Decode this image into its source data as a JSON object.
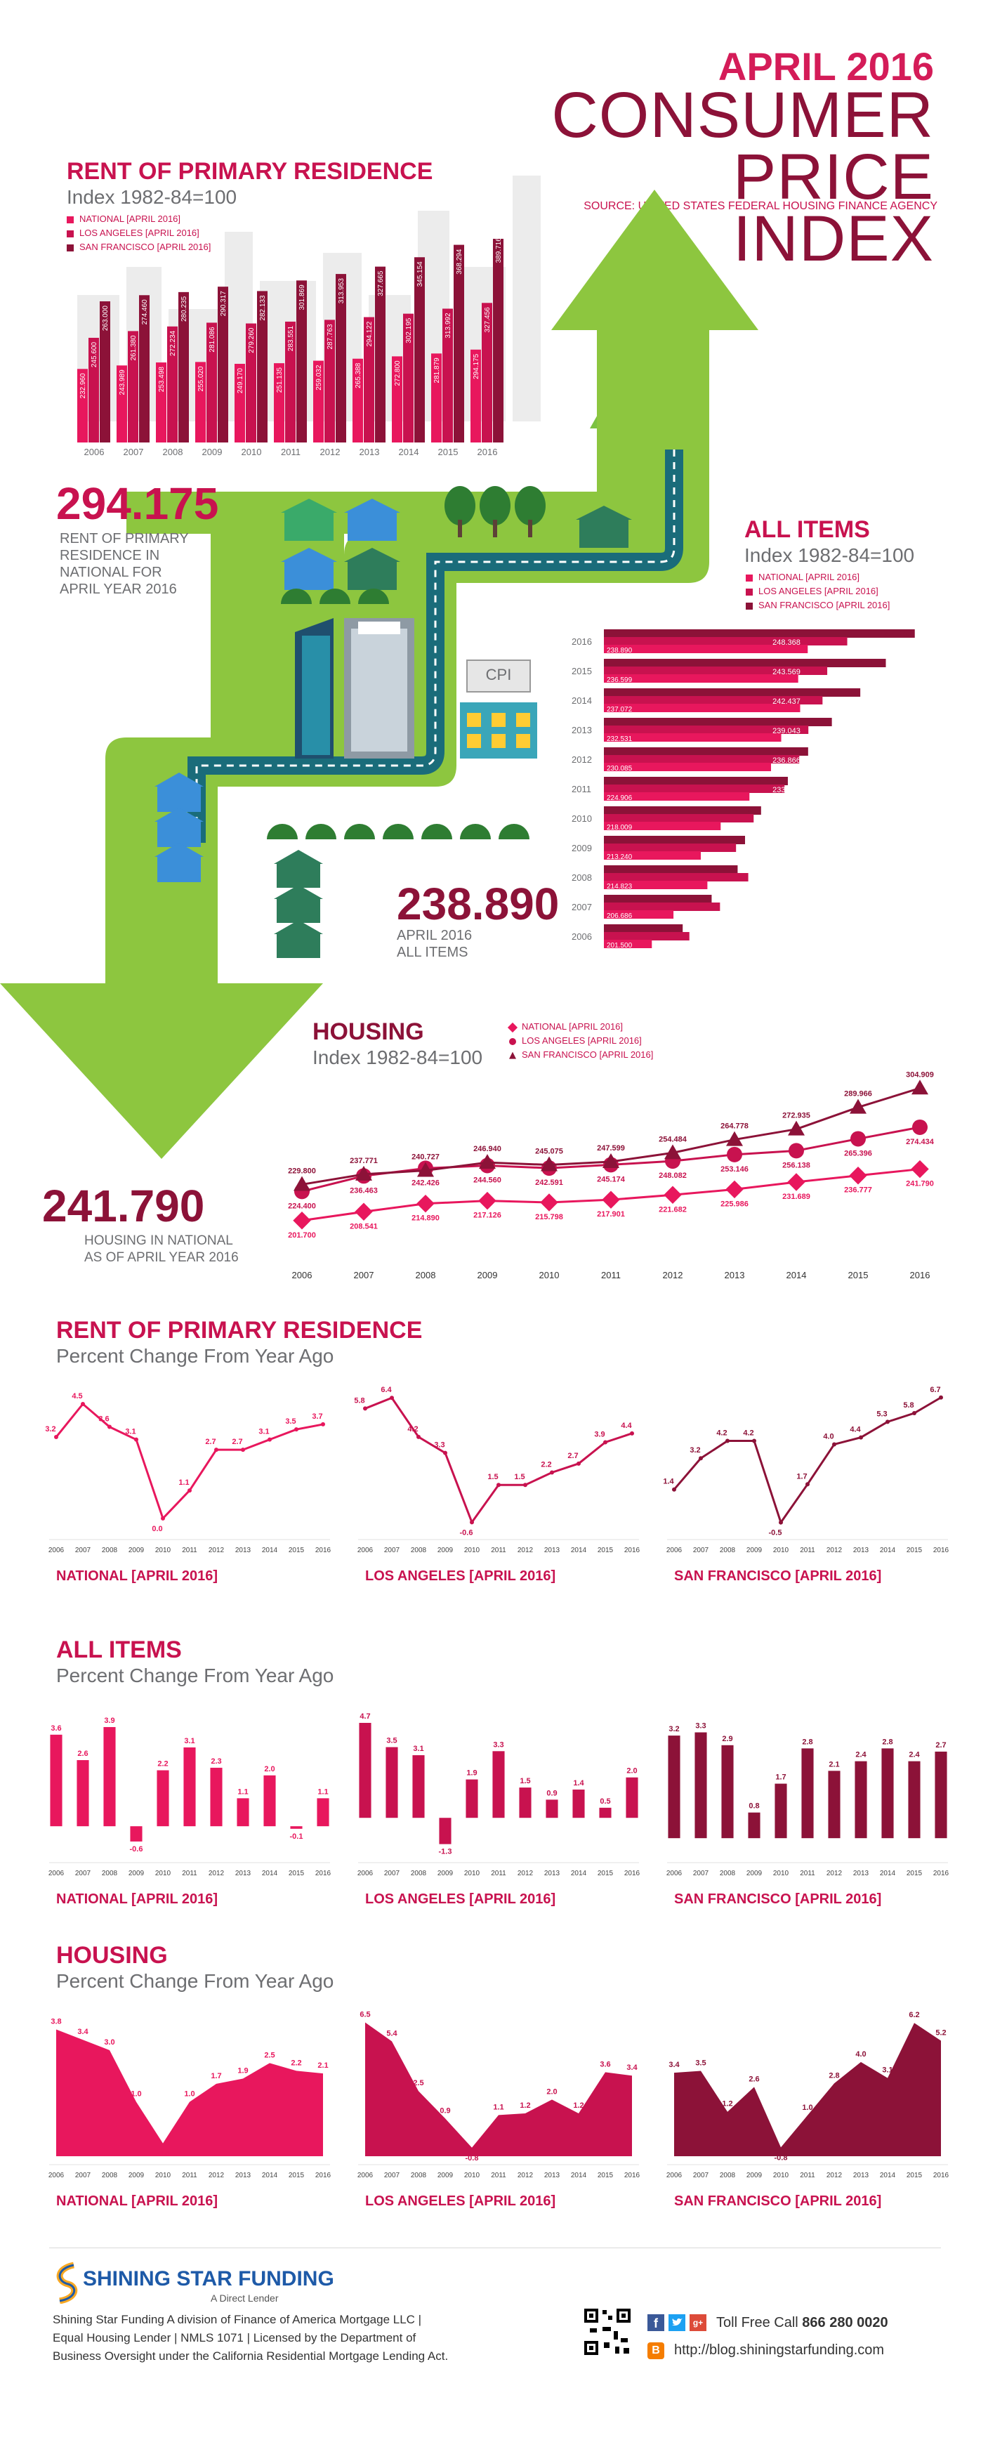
{
  "header": {
    "title_line1": "APRIL 2016",
    "title_line2a": "CONSUMER",
    "title_line2b": "PRICE INDEX",
    "source": "SOURCE: UNITED STATES FEDERAL HOUSING FINANCE AGENCY"
  },
  "colors": {
    "national": "#e8175d",
    "los_angeles": "#c8124f",
    "san_francisco": "#8c1238",
    "green": "#8dc63f",
    "dark_green": "#3b7a2a"
  },
  "icons": [
    "house-icon",
    "tree-icon",
    "building-icon",
    "cpi-store-icon",
    "arrow-icon",
    "skyline-icon",
    "qr-code-icon",
    "facebook-icon",
    "twitter-icon",
    "google-plus-icon",
    "blogger-icon",
    "shining-star-logo-icon"
  ],
  "legend": {
    "national": "NATIONAL [APRIL 2016]",
    "los_angeles": "LOS ANGELES [APRIL 2016]",
    "san_francisco": "SAN FRANCISCO [APRIL 2016]"
  },
  "rent_section": {
    "title": "RENT OF PRIMARY RESIDENCE",
    "subtitle": "Index 1982-84=100"
  },
  "rent_callout": {
    "value": "294.175",
    "caption_lines": [
      "RENT OF PRIMARY",
      "RESIDENCE IN",
      "NATIONAL FOR",
      "APRIL YEAR 2016"
    ]
  },
  "allitems_section": {
    "title": "ALL ITEMS",
    "subtitle": "Index 1982-84=100"
  },
  "allitems_callout": {
    "value": "238.890",
    "caption_lines": [
      "APRIL 2016",
      "ALL ITEMS"
    ]
  },
  "housing_section": {
    "title": "HOUSING",
    "subtitle": "Index 1982-84=100"
  },
  "housing_callout": {
    "value": "241.790",
    "caption_lines": [
      "HOUSING IN NATIONAL",
      "AS OF APRIL YEAR 2016"
    ]
  },
  "cpi_sign": "CPI",
  "chart_data": [
    {
      "id": "rent-index",
      "type": "bar",
      "title": "RENT OF PRIMARY RESIDENCE",
      "subtitle": "Index 1982-84=100",
      "categories": [
        "2006",
        "2007",
        "2008",
        "2009",
        "2010",
        "2011",
        "2012",
        "2013",
        "2014",
        "2015",
        "2016"
      ],
      "series": [
        {
          "name": "NATIONAL [APRIL 2016]",
          "values": [
            232.96,
            243.989,
            253.498,
            255.02,
            249.17,
            251.135,
            259.032,
            265.388,
            272.8,
            281.879,
            294.175
          ]
        },
        {
          "name": "LOS ANGELES [APRIL 2016]",
          "values": [
            245.6,
            261.38,
            272.234,
            281.086,
            279.26,
            283.551,
            287.763,
            294.122,
            302.195,
            313.992,
            327.456
          ]
        },
        {
          "name": "SAN FRANCISCO [APRIL 2016]",
          "values": [
            263.0,
            274.46,
            280.235,
            290.317,
            282.133,
            301.869,
            313.953,
            327.665,
            345.154,
            368.294,
            389.716
          ]
        }
      ],
      "ylim": [
        0,
        400
      ]
    },
    {
      "id": "allitems-index",
      "type": "bar",
      "orientation": "horizontal",
      "title": "ALL ITEMS",
      "subtitle": "Index 1982-84=100",
      "categories": [
        "2016",
        "2015",
        "2014",
        "2013",
        "2012",
        "2011",
        "2010",
        "2009",
        "2008",
        "2007",
        "2006"
      ],
      "series": [
        {
          "name": "NATIONAL [APRIL 2016]",
          "values": [
            238.89,
            236.599,
            237.072,
            232.531,
            230.085,
            224.906,
            218.009,
            213.24,
            214.823,
            206.686,
            201.5
          ]
        },
        {
          "name": "LOS ANGELES [APRIL 2016]",
          "values": [
            248.368,
            243.569,
            242.437,
            239.043,
            236.866,
            233.319,
            225.916,
            221.693,
            224.625,
            217.845,
            210.5
          ]
        },
        {
          "name": "SAN FRANCISCO [APRIL 2016]",
          "values": [
            264.565,
            257.622,
            251.495,
            244.675,
            238.985,
            234.121,
            227.697,
            223.854,
            222.074,
            215.842,
            208.9
          ]
        }
      ],
      "xlim": [
        190,
        270
      ]
    },
    {
      "id": "housing-index",
      "type": "line",
      "title": "HOUSING",
      "subtitle": "Index 1982-84=100",
      "x": [
        "2006",
        "2007",
        "2008",
        "2009",
        "2010",
        "2011",
        "2012",
        "2013",
        "2014",
        "2015",
        "2016"
      ],
      "series": [
        {
          "name": "NATIONAL [APRIL 2016]",
          "values": [
            201.7,
            208.541,
            214.89,
            217.126,
            215.798,
            217.901,
            221.682,
            225.986,
            231.689,
            236.777,
            241.79
          ]
        },
        {
          "name": "LOS ANGELES [APRIL 2016]",
          "values": [
            224.4,
            236.463,
            242.426,
            244.56,
            242.591,
            245.174,
            248.082,
            253.146,
            256.138,
            265.396,
            274.434
          ]
        },
        {
          "name": "SAN FRANCISCO [APRIL 2016]",
          "values": [
            229.8,
            237.771,
            240.727,
            246.94,
            245.075,
            247.599,
            254.484,
            264.778,
            272.935,
            289.966,
            304.909
          ]
        }
      ],
      "ylim": [
        195,
        310
      ]
    },
    {
      "id": "rent-pct",
      "type": "line",
      "title": "RENT OF PRIMARY RESIDENCE",
      "subtitle": "Percent Change From Year Ago",
      "x": [
        "2006",
        "2007",
        "2008",
        "2009",
        "2010",
        "2011",
        "2012",
        "2013",
        "2014",
        "2015",
        "2016"
      ],
      "panels": [
        {
          "label": "NATIONAL [APRIL 2016]",
          "values": [
            3.2,
            4.5,
            3.6,
            3.1,
            0.0,
            1.1,
            2.7,
            2.7,
            3.1,
            3.5,
            3.7
          ]
        },
        {
          "label": "LOS ANGELES [APRIL 2016]",
          "values": [
            5.8,
            6.4,
            4.2,
            3.3,
            -0.6,
            1.5,
            1.5,
            2.2,
            2.7,
            3.9,
            4.4
          ]
        },
        {
          "label": "SAN FRANCISCO [APRIL 2016]",
          "values": [
            1.4,
            3.2,
            4.2,
            4.2,
            -0.5,
            1.7,
            4.0,
            4.4,
            5.3,
            5.8,
            6.7
          ]
        }
      ]
    },
    {
      "id": "allitems-pct",
      "type": "bar",
      "title": "ALL ITEMS",
      "subtitle": "Percent Change From Year Ago",
      "categories": [
        "2006",
        "2007",
        "2008",
        "2009",
        "2010",
        "2011",
        "2012",
        "2013",
        "2014",
        "2015",
        "2016"
      ],
      "panels": [
        {
          "label": "NATIONAL [APRIL 2016]",
          "values": [
            3.6,
            2.6,
            3.9,
            -0.6,
            2.2,
            3.1,
            2.3,
            1.1,
            2.0,
            -0.1,
            1.1
          ]
        },
        {
          "label": "LOS ANGELES [APRIL 2016]",
          "values": [
            4.7,
            3.5,
            3.1,
            -1.3,
            1.9,
            3.3,
            1.5,
            0.9,
            1.4,
            0.5,
            2.0
          ]
        },
        {
          "label": "SAN FRANCISCO [APRIL 2016]",
          "values": [
            3.2,
            3.3,
            2.9,
            0.8,
            1.7,
            2.8,
            2.1,
            2.4,
            2.8,
            2.4,
            2.7
          ]
        }
      ]
    },
    {
      "id": "housing-pct",
      "type": "area",
      "title": "HOUSING",
      "subtitle": "Percent Change From Year Ago",
      "x": [
        "2006",
        "2007",
        "2008",
        "2009",
        "2010",
        "2011",
        "2012",
        "2013",
        "2014",
        "2015",
        "2016"
      ],
      "panels": [
        {
          "label": "NATIONAL [APRIL 2016]",
          "values": [
            3.8,
            3.4,
            3.0,
            1.0,
            -0.6,
            1.0,
            1.7,
            1.9,
            2.5,
            2.2,
            2.1
          ]
        },
        {
          "label": "LOS ANGELES [APRIL 2016]",
          "values": [
            6.5,
            5.4,
            2.5,
            0.9,
            -0.8,
            1.1,
            1.2,
            2.0,
            1.2,
            3.6,
            3.4
          ]
        },
        {
          "label": "SAN FRANCISCO [APRIL 2016]",
          "values": [
            3.4,
            3.5,
            1.2,
            2.6,
            -0.8,
            1.0,
            2.8,
            4.0,
            3.1,
            6.2,
            5.2
          ]
        }
      ]
    }
  ],
  "footer": {
    "brand": "SHINING STAR FUNDING",
    "tagline": "A Direct Lender",
    "legal_lines": [
      "Shining Star Funding A division of Finance of America Mortgage LLC |",
      "Equal Housing Lender | NMLS 1071 | Licensed by the Department of",
      "Business Oversight under the California Residential Mortgage Lending Act."
    ],
    "phone_label": "Toll Free Call",
    "phone": "866 280 0020",
    "blog": "http://blog.shiningstarfunding.com"
  }
}
